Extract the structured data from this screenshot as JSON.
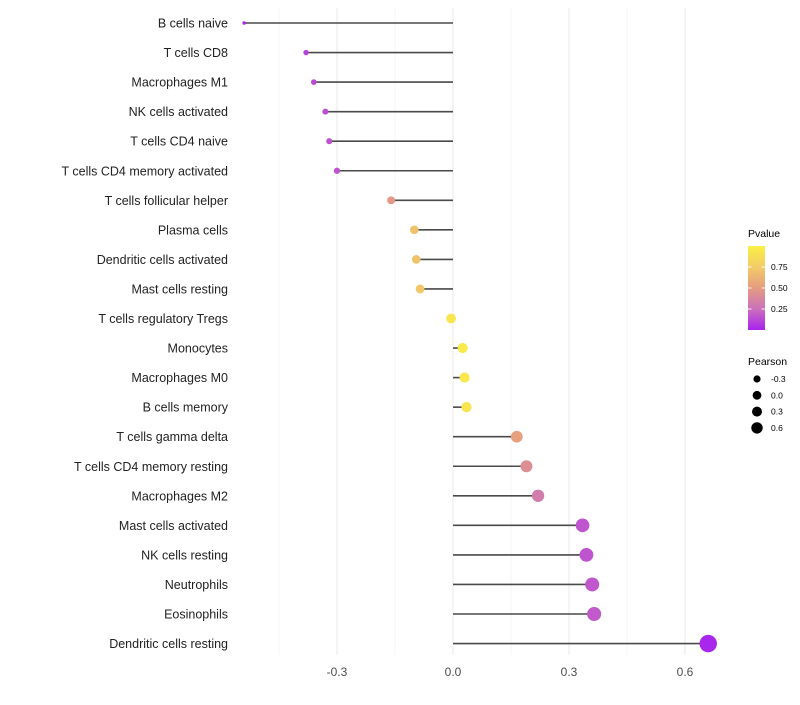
{
  "chart_data": {
    "type": "scatter",
    "subtype": "lollipop-horizontal",
    "title": "",
    "xlabel": "",
    "ylabel": "",
    "baseline": 0.0,
    "xlim": [
      -0.57,
      0.73
    ],
    "grid": "vertical-only",
    "x_ticks": {
      "values": [
        -0.3,
        0.0,
        0.3,
        0.6
      ],
      "labels": [
        "-0.3",
        "0.0",
        "0.3",
        "0.6"
      ]
    },
    "x_minor_ticks": [
      -0.45,
      -0.15,
      0.15,
      0.45
    ],
    "points": [
      {
        "label": "B cells naive",
        "pearson": -0.54,
        "pvalue": 0.02
      },
      {
        "label": "T cells CD8",
        "pearson": -0.38,
        "pvalue": 0.1
      },
      {
        "label": "Macrophages M1",
        "pearson": -0.36,
        "pvalue": 0.12
      },
      {
        "label": "NK cells activated",
        "pearson": -0.33,
        "pvalue": 0.14
      },
      {
        "label": "T cells CD4 naive",
        "pearson": -0.32,
        "pvalue": 0.15
      },
      {
        "label": "T cells CD4 memory activated",
        "pearson": -0.3,
        "pvalue": 0.16
      },
      {
        "label": "T cells follicular helper",
        "pearson": -0.16,
        "pvalue": 0.47
      },
      {
        "label": "Plasma cells",
        "pearson": -0.1,
        "pvalue": 0.7
      },
      {
        "label": "Dendritic cells activated",
        "pearson": -0.095,
        "pvalue": 0.7
      },
      {
        "label": "Mast cells resting",
        "pearson": -0.085,
        "pvalue": 0.73
      },
      {
        "label": "T cells regulatory  Tregs",
        "pearson": -0.005,
        "pvalue": 0.93
      },
      {
        "label": "Monocytes",
        "pearson": 0.025,
        "pvalue": 0.95
      },
      {
        "label": "Macrophages M0",
        "pearson": 0.03,
        "pvalue": 0.94
      },
      {
        "label": "B cells memory",
        "pearson": 0.035,
        "pvalue": 0.92
      },
      {
        "label": "T cells gamma delta",
        "pearson": 0.165,
        "pvalue": 0.52
      },
      {
        "label": "T cells CD4 memory resting",
        "pearson": 0.19,
        "pvalue": 0.42
      },
      {
        "label": "Macrophages M2",
        "pearson": 0.22,
        "pvalue": 0.32
      },
      {
        "label": "Mast cells activated",
        "pearson": 0.335,
        "pvalue": 0.16
      },
      {
        "label": "NK cells resting",
        "pearson": 0.345,
        "pvalue": 0.16
      },
      {
        "label": "Neutrophils",
        "pearson": 0.36,
        "pvalue": 0.17
      },
      {
        "label": "Eosinophils",
        "pearson": 0.365,
        "pvalue": 0.18
      },
      {
        "label": "Dendritic cells resting",
        "pearson": 0.66,
        "pvalue": 0.01
      }
    ],
    "legend": {
      "position": "right",
      "pvalue": {
        "title": "Pvalue",
        "tick_labels": [
          "0.75",
          "0.50",
          "0.25"
        ],
        "tick_values": [
          0.75,
          0.5,
          0.25
        ],
        "range": [
          0,
          1
        ]
      },
      "pearson": {
        "title": "Pearson",
        "labels": [
          "-0.3",
          "0.0",
          "0.3",
          "0.6"
        ],
        "values": [
          -0.3,
          0.0,
          0.3,
          0.6
        ]
      }
    },
    "colors": {
      "gradient_stops_low_to_high": [
        "#A823EE",
        "#CB70BC",
        "#E59C80",
        "#F3CB67",
        "#FBF042"
      ],
      "segment": "#4a4a4a",
      "grid_major": "#e8e8e8",
      "grid_minor": "#f4f4f4",
      "x_axis_text": "#4d4d4d",
      "y_axis_text": "#222222",
      "legend_text": "#000000",
      "legend_dot": "#000000",
      "background": "#ffffff"
    }
  }
}
